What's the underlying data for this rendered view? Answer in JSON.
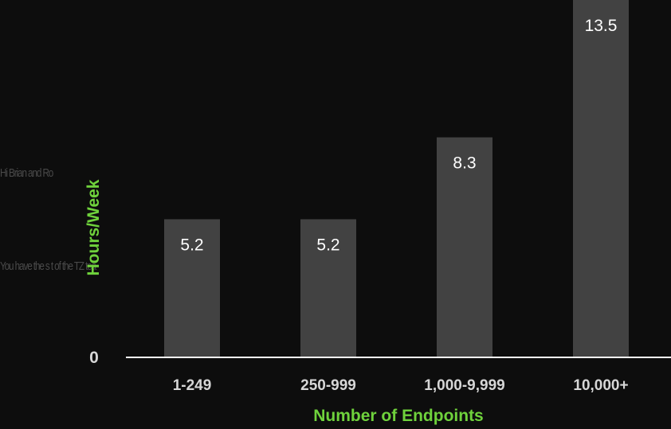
{
  "overlay_lines": [
    "Hi Brian and Ro",
    "You have the s t of the TZ tea"
  ],
  "chart_data": {
    "type": "bar",
    "categories": [
      "1-249",
      "250-999",
      "1,000-9,999",
      "10,000+"
    ],
    "values": [
      5.2,
      5.2,
      8.3,
      13.5
    ],
    "data_labels": [
      "5.2",
      "5.2",
      "8.3",
      "13.5"
    ],
    "xlabel": "Number of Endpoints",
    "ylabel": "Hours/Week",
    "yticks": [
      {
        "value": 0,
        "label": "0"
      }
    ],
    "ylim": [
      0,
      13.5
    ],
    "grid": false,
    "legend": "none",
    "colors": {
      "background": "#0d0d0d",
      "bar": "#424242",
      "axis": "#ffffff",
      "axis_label": "#6fd23c",
      "tick_label": "#d6d6d6",
      "data_label": "#ffffff"
    }
  }
}
